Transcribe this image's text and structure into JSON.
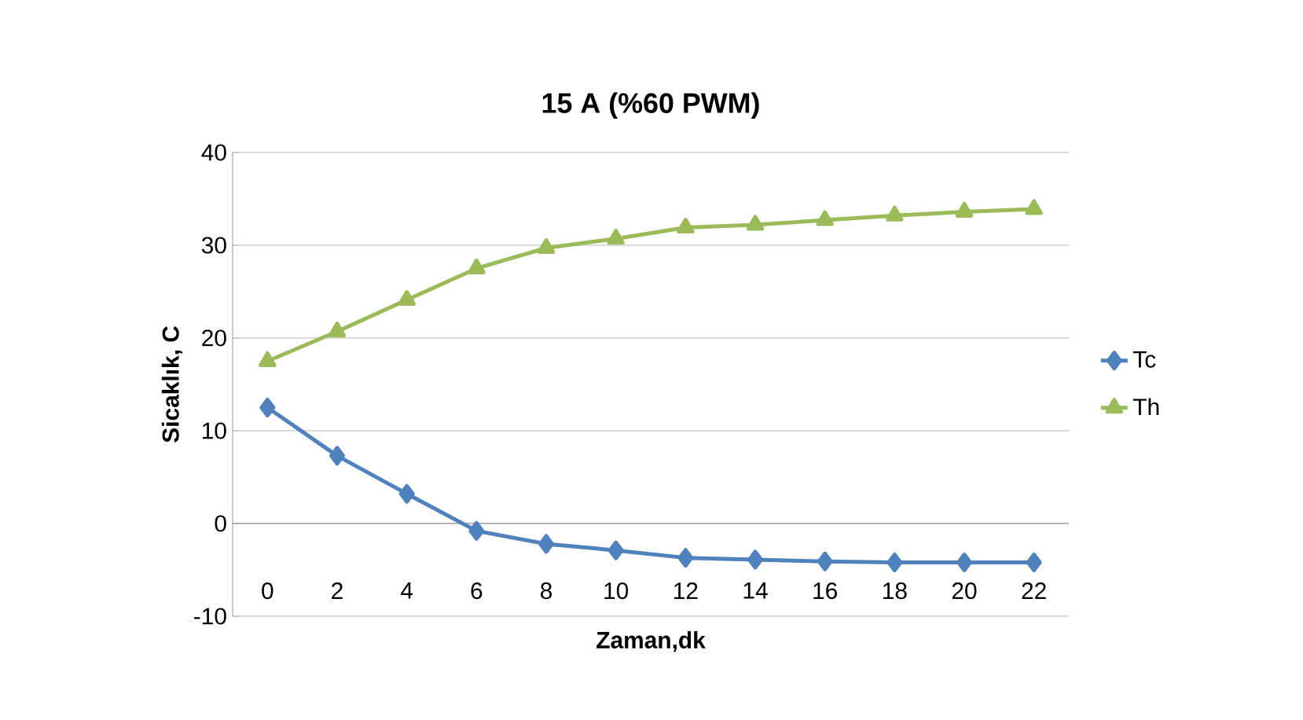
{
  "chart_data": {
    "type": "line",
    "title": "15 A (%60 PWM)",
    "xlabel": "Zaman,dk",
    "ylabel": "Sicaklık, C",
    "categories": [
      "0",
      "2",
      "4",
      "6",
      "8",
      "10",
      "12",
      "14",
      "16",
      "18",
      "20",
      "22"
    ],
    "series": [
      {
        "name": "Tc",
        "color": "#4f81bd",
        "marker": "diamond",
        "values": [
          12.5,
          7.3,
          3.2,
          -0.8,
          -2.2,
          -2.9,
          -3.7,
          -3.9,
          -4.1,
          -4.2,
          -4.2,
          -4.2
        ]
      },
      {
        "name": "Th",
        "color": "#9bbb59",
        "marker": "triangle",
        "values": [
          17.5,
          20.7,
          24.1,
          27.5,
          29.7,
          30.7,
          31.9,
          32.2,
          32.7,
          33.2,
          33.6,
          33.9
        ]
      }
    ],
    "ylim": [
      -10,
      40
    ],
    "yticks": [
      -10,
      0,
      10,
      20,
      30,
      40
    ],
    "grid": "y",
    "legend": "right"
  }
}
